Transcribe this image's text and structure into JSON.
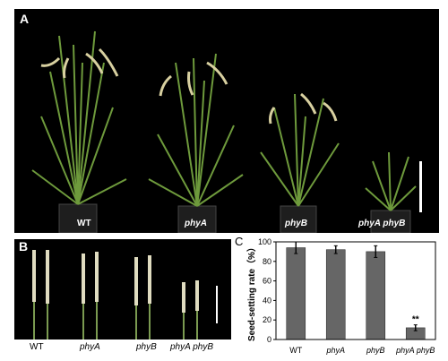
{
  "figure": {
    "panel_a": {
      "letter": "A",
      "labels": [
        "WT",
        "phyA",
        "phyB",
        "phyA phyB"
      ]
    },
    "panel_b": {
      "letter": "B",
      "labels": [
        "WT",
        "phyA",
        "phyB",
        "phyA phyB"
      ]
    },
    "panel_c": {
      "letter": "C"
    }
  },
  "chart_data": {
    "type": "bar",
    "categories": [
      "WT",
      "phyA",
      "phyB",
      "phyA phyB"
    ],
    "values": [
      94,
      92,
      90,
      12
    ],
    "errors": [
      6,
      4,
      6,
      3
    ],
    "significance": [
      "",
      "",
      "",
      "**"
    ],
    "title": "",
    "xlabel": "",
    "ylabel": "Seed-setting rate（%）",
    "ylim": [
      0,
      100
    ],
    "yticks": [
      0,
      20,
      40,
      60,
      80,
      100
    ],
    "bar_color": "#666666",
    "grid": false
  }
}
